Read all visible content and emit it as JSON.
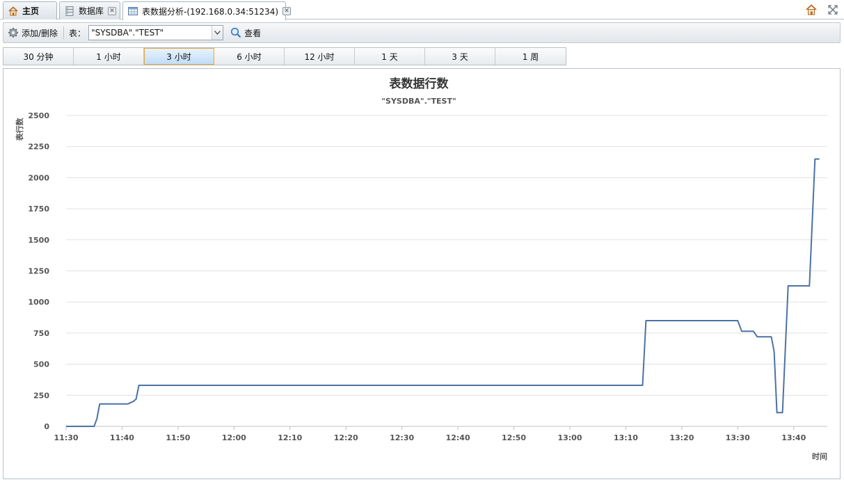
{
  "tabs": [
    {
      "label": "主页",
      "icon": "home-icon",
      "closable": false,
      "active": false
    },
    {
      "label": "数据库",
      "icon": "database-icon",
      "closable": true,
      "active": false
    },
    {
      "label": "表数据分析-(192.168.0.34:51234)",
      "icon": "table-grid-icon",
      "closable": true,
      "active": true
    }
  ],
  "window_icons": [
    "home-icon",
    "detach-window-icon"
  ],
  "toolbar": {
    "add_remove_label": "添加/删除",
    "table_label": "表：",
    "table_value": "\"SYSDBA\".\"TEST\"",
    "view_label": "查看"
  },
  "time_ranges": [
    "30 分钟",
    "1 小时",
    "3 小时",
    "6 小时",
    "12 小时",
    "1 天",
    "3 天",
    "1 周"
  ],
  "selected_range": "3 小时",
  "colors": {
    "line": "#4a72a5",
    "selected_range_border": "#e3a945",
    "gridline": "#e0e0e0"
  },
  "chart_data": {
    "type": "line",
    "title": "表数据行数",
    "subtitle": "\"SYSDBA\".\"TEST\"",
    "xlabel": "时间",
    "ylabel": "表行数",
    "ylim": [
      0,
      2500
    ],
    "yticks": [
      0,
      250,
      500,
      750,
      1000,
      1250,
      1500,
      1750,
      2000,
      2250,
      2500
    ],
    "x_domain": [
      "11:30",
      "13:46"
    ],
    "xticks": [
      "11:30",
      "11:40",
      "11:50",
      "12:00",
      "12:10",
      "12:20",
      "12:30",
      "12:40",
      "12:50",
      "13:00",
      "13:10",
      "13:20",
      "13:30",
      "13:40"
    ],
    "grid": true,
    "legend": "none",
    "series": [
      {
        "points": [
          [
            "11:30",
            0
          ],
          [
            "11:35",
            0
          ],
          [
            "11:35.5",
            60
          ],
          [
            "11:36",
            180
          ],
          [
            "11:41",
            180
          ],
          [
            "11:42",
            200
          ],
          [
            "11:42.5",
            220
          ],
          [
            "11:43",
            330
          ],
          [
            "13:13",
            330
          ],
          [
            "13:13.6",
            850
          ],
          [
            "13:30",
            850
          ],
          [
            "13:30.7",
            765
          ],
          [
            "13:32.8",
            765
          ],
          [
            "13:33.5",
            720
          ],
          [
            "13:36",
            720
          ],
          [
            "13:36.5",
            600
          ],
          [
            "13:37",
            110
          ],
          [
            "13:38",
            110
          ],
          [
            "13:39",
            1130
          ],
          [
            "13:42.8",
            1130
          ],
          [
            "13:43.8",
            2150
          ],
          [
            "13:44.6",
            2150
          ]
        ]
      }
    ]
  }
}
